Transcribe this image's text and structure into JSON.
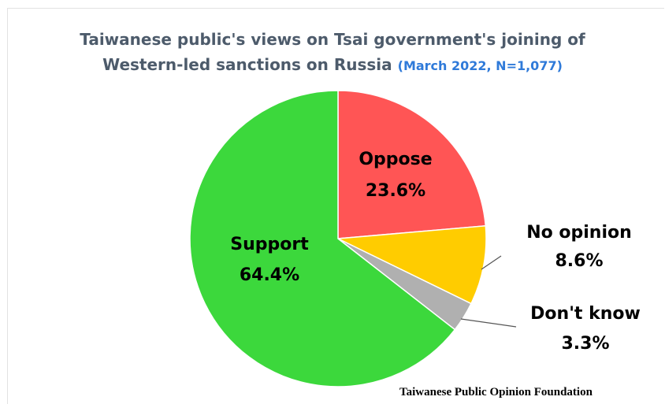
{
  "chart_data": {
    "type": "pie",
    "title_line1": "Taiwanese public's views on Tsai government's joining of",
    "title_line2": "Western-led sanctions on Russia",
    "subtitle": "(March 2022, N=1,077)",
    "slices": [
      {
        "label": "Oppose",
        "value": 23.6,
        "value_text": "23.6%",
        "color": "#ff5555"
      },
      {
        "label": "No opinion",
        "value": 8.6,
        "value_text": "8.6%",
        "color": "#ffcc00"
      },
      {
        "label": "Don't know",
        "value": 3.3,
        "value_text": "3.3%",
        "color": "#b0b0b0"
      },
      {
        "label": "Support",
        "value": 64.4,
        "value_text": "64.4%",
        "color": "#3cd83c"
      }
    ],
    "start_at": "top, clockwise"
  },
  "source": "Taiwanese Public Opinion Foundation"
}
